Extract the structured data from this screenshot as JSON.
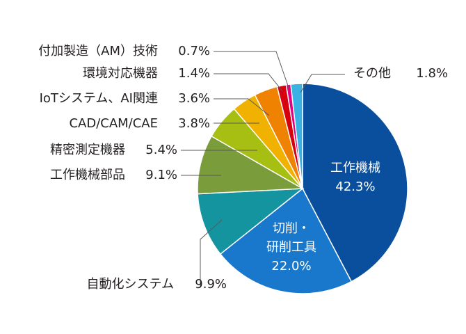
{
  "chart_data": {
    "type": "pie",
    "title": "",
    "slices": [
      {
        "label": "工作機械",
        "value": 42.3,
        "value_label": "42.3%",
        "color": "#0a4f9e",
        "label_position": "inside"
      },
      {
        "label_lines": [
          "切削・",
          "研削工具"
        ],
        "value": 22.0,
        "value_label": "22.0%",
        "color": "#1a78cc",
        "label_position": "inside"
      },
      {
        "label": "自動化システム",
        "value": 9.9,
        "value_label": "9.9%",
        "color": "#13949f",
        "label_position": "outside"
      },
      {
        "label": "工作機械部品",
        "value": 9.1,
        "value_label": "9.1%",
        "color": "#7a9c3a",
        "label_position": "outside"
      },
      {
        "label": "精密測定機器",
        "value": 5.4,
        "value_label": "5.4%",
        "color": "#a6bf12",
        "label_position": "outside"
      },
      {
        "label": "CAD/CAM/CAE",
        "value": 3.8,
        "value_label": "3.8%",
        "color": "#f0b100",
        "label_position": "outside"
      },
      {
        "label": "IoTシステム、AI関連",
        "value": 3.6,
        "value_label": "3.6%",
        "color": "#ef8200",
        "label_position": "outside"
      },
      {
        "label": "環境対応機器",
        "value": 1.4,
        "value_label": "1.4%",
        "color": "#d7000f",
        "label_position": "outside"
      },
      {
        "label": "付加製造（AM）技術",
        "value": 0.7,
        "value_label": "0.7%",
        "color": "#e4007f",
        "label_position": "outside"
      },
      {
        "label": "その他",
        "value": 1.8,
        "value_label": "1.8%",
        "color": "#3ab2e4",
        "label_position": "outside"
      }
    ],
    "start_angle_deg": 0,
    "direction": "clockwise",
    "legend": "none"
  }
}
